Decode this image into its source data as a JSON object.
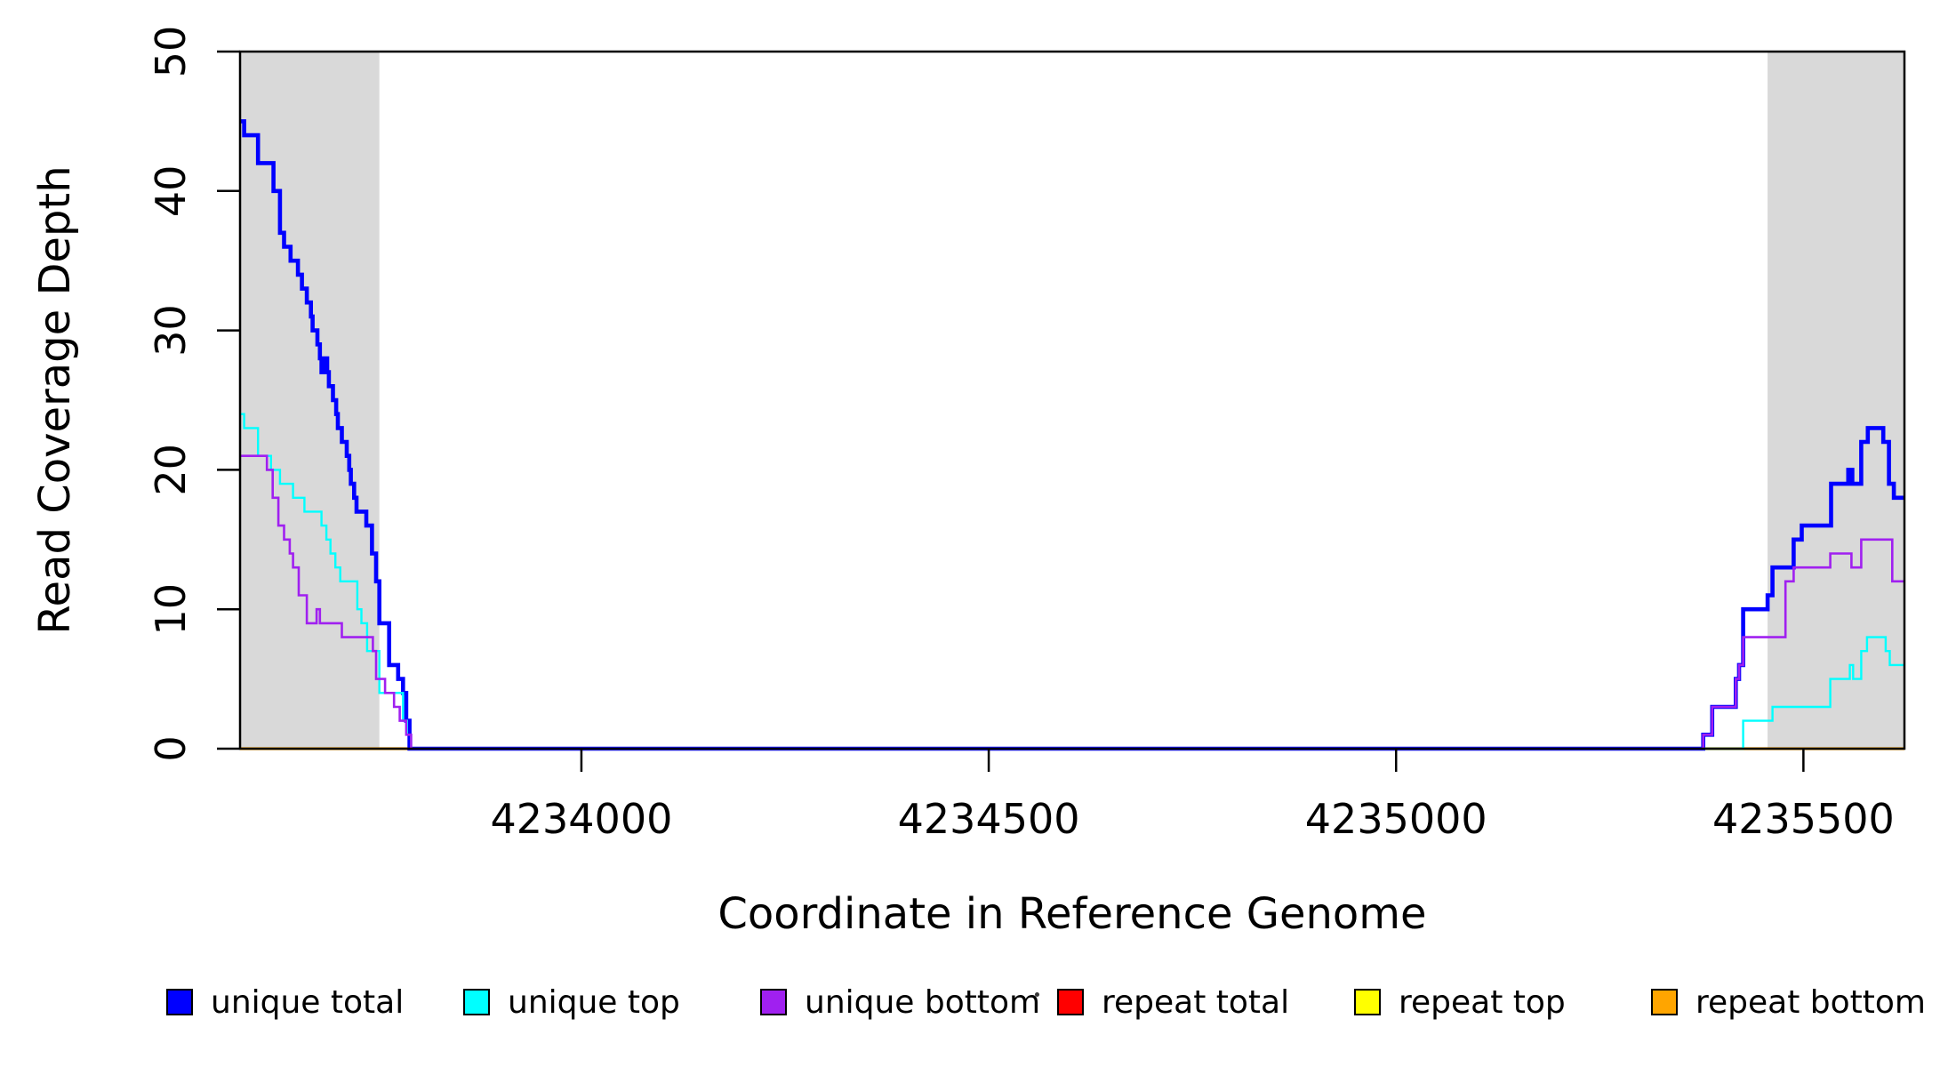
{
  "chart_data": {
    "type": "line",
    "subtype": "step",
    "title": "",
    "xlabel": "Coordinate in Reference Genome",
    "ylabel": "Read Coverage Depth",
    "xlim": [
      4233581,
      4235624
    ],
    "ylim": [
      0,
      50
    ],
    "x_ticks": [
      4234000,
      4234500,
      4235000,
      4235500
    ],
    "y_ticks": [
      0,
      10,
      20,
      30,
      40,
      50
    ],
    "grid": false,
    "legend_position": "bottom",
    "plot_background": "#ffffff",
    "band_color": "#d9d9d9",
    "axis_color": "#000000",
    "shaded_regions": [
      {
        "from": 4233581,
        "to": 4233752
      },
      {
        "from": 4235456,
        "to": 4235624
      }
    ],
    "series": [
      {
        "name": "unique total",
        "color": "#0000ff",
        "line_width": 4.6,
        "points": [
          [
            4233581,
            45
          ],
          [
            4233586,
            44
          ],
          [
            4233603,
            42
          ],
          [
            4233622,
            40
          ],
          [
            4233630,
            37
          ],
          [
            4233635,
            36
          ],
          [
            4233643,
            35
          ],
          [
            4233652,
            34
          ],
          [
            4233657,
            33
          ],
          [
            4233663,
            32
          ],
          [
            4233668,
            31
          ],
          [
            4233670,
            30
          ],
          [
            4233676,
            29
          ],
          [
            4233679,
            28
          ],
          [
            4233681,
            27
          ],
          [
            4233684,
            28
          ],
          [
            4233688,
            27
          ],
          [
            4233690,
            26
          ],
          [
            4233695,
            25
          ],
          [
            4233699,
            24
          ],
          [
            4233701,
            23
          ],
          [
            4233706,
            22
          ],
          [
            4233712,
            21
          ],
          [
            4233715,
            20
          ],
          [
            4233717,
            19
          ],
          [
            4233721,
            18
          ],
          [
            4233724,
            17
          ],
          [
            4233736,
            16
          ],
          [
            4233743,
            14
          ],
          [
            4233748,
            12
          ],
          [
            4233752,
            9
          ],
          [
            4233764,
            6
          ],
          [
            4233775,
            5
          ],
          [
            4233781,
            4
          ],
          [
            4233785,
            2
          ],
          [
            4233789,
            0
          ],
          [
            4235377,
            1
          ],
          [
            4235388,
            3
          ],
          [
            4235417,
            5
          ],
          [
            4235421,
            6
          ],
          [
            4235426,
            10
          ],
          [
            4235456,
            11
          ],
          [
            4235462,
            13
          ],
          [
            4235488,
            15
          ],
          [
            4235498,
            16
          ],
          [
            4235534,
            19
          ],
          [
            4235555,
            20
          ],
          [
            4235560,
            19
          ],
          [
            4235571,
            22
          ],
          [
            4235579,
            23
          ],
          [
            4235598,
            22
          ],
          [
            4235605,
            19
          ],
          [
            4235611,
            18
          ]
        ]
      },
      {
        "name": "unique top",
        "color": "#00ffff",
        "line_width": 2.4,
        "points": [
          [
            4233581,
            24
          ],
          [
            4233586,
            23
          ],
          [
            4233603,
            21
          ],
          [
            4233619,
            20
          ],
          [
            4233630,
            19
          ],
          [
            4233646,
            18
          ],
          [
            4233660,
            17
          ],
          [
            4233681,
            16
          ],
          [
            4233687,
            15
          ],
          [
            4233692,
            14
          ],
          [
            4233698,
            13
          ],
          [
            4233704,
            12
          ],
          [
            4233725,
            10
          ],
          [
            4233730,
            9
          ],
          [
            4233737,
            7
          ],
          [
            4233752,
            4
          ],
          [
            4233781,
            2
          ],
          [
            4233786,
            1
          ],
          [
            4233791,
            0
          ],
          [
            4235426,
            2
          ],
          [
            4235462,
            3
          ],
          [
            4235533,
            5
          ],
          [
            4235557,
            6
          ],
          [
            4235561,
            5
          ],
          [
            4235571,
            7
          ],
          [
            4235578,
            8
          ],
          [
            4235601,
            7
          ],
          [
            4235606,
            6
          ]
        ]
      },
      {
        "name": "unique bottom",
        "color": "#a020f0",
        "line_width": 2.6,
        "points": [
          [
            4233581,
            21
          ],
          [
            4233614,
            20
          ],
          [
            4233621,
            18
          ],
          [
            4233628,
            16
          ],
          [
            4233635,
            15
          ],
          [
            4233642,
            14
          ],
          [
            4233646,
            13
          ],
          [
            4233653,
            11
          ],
          [
            4233663,
            9
          ],
          [
            4233675,
            10
          ],
          [
            4233679,
            9
          ],
          [
            4233706,
            8
          ],
          [
            4233744,
            7
          ],
          [
            4233748,
            5
          ],
          [
            4233759,
            4
          ],
          [
            4233770,
            3
          ],
          [
            4233777,
            2
          ],
          [
            4233785,
            1
          ],
          [
            4233791,
            0
          ],
          [
            4235377,
            1
          ],
          [
            4235388,
            3
          ],
          [
            4235417,
            5
          ],
          [
            4235421,
            6
          ],
          [
            4235426,
            8
          ],
          [
            4235478,
            12
          ],
          [
            4235488,
            13
          ],
          [
            4235533,
            14
          ],
          [
            4235559,
            13
          ],
          [
            4235571,
            15
          ],
          [
            4235609,
            12
          ]
        ]
      },
      {
        "name": "repeat total",
        "color": "#ff0000",
        "line_width": 3,
        "points": [
          [
            4233581,
            0
          ]
        ]
      },
      {
        "name": "repeat top",
        "color": "#ffff00",
        "line_width": 3,
        "points": [
          [
            4233581,
            0
          ]
        ]
      },
      {
        "name": "repeat bottom",
        "color": "#ffa500",
        "line_width": 3.2,
        "points": [
          [
            4233581,
            0
          ]
        ]
      }
    ]
  }
}
